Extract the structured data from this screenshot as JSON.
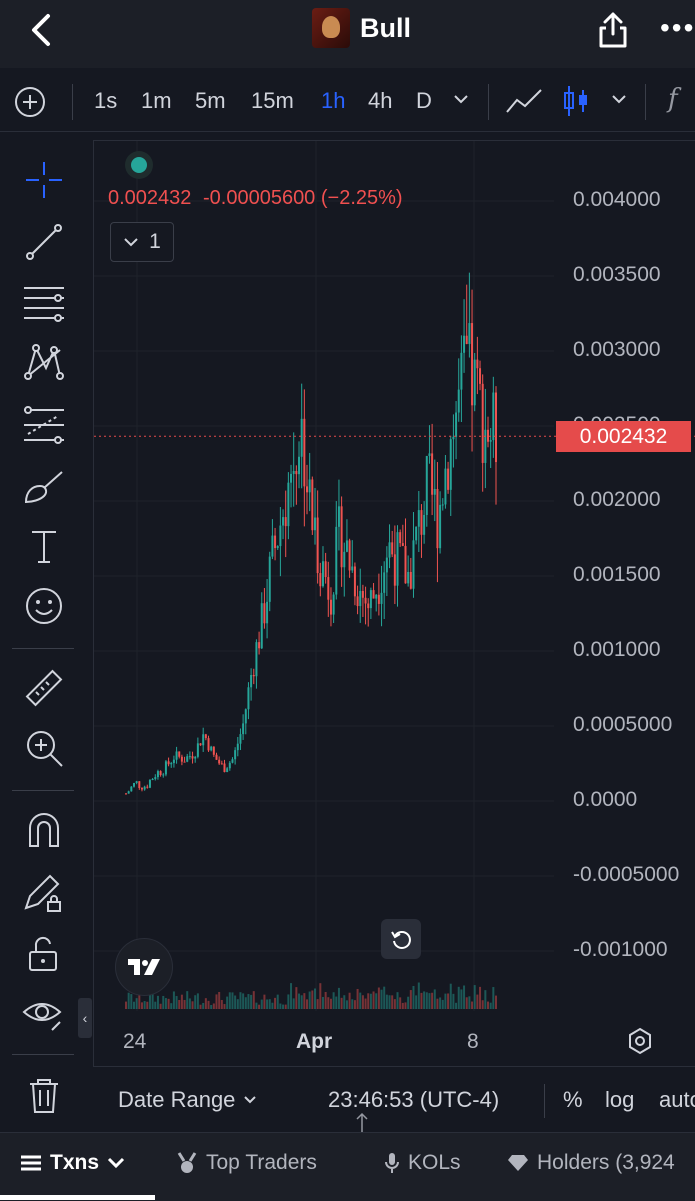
{
  "header": {
    "title": "Bull",
    "back_icon": "chevron-left-icon",
    "share_icon": "share-icon",
    "more_icon": "more-icon"
  },
  "toolbar": {
    "timeframes": [
      "1s",
      "1m",
      "5m",
      "15m",
      "1h",
      "4h",
      "D"
    ],
    "active_timeframe": "1h"
  },
  "chart": {
    "legend_price": "0.002432",
    "legend_change": "-0.00005600 (−2.25%)",
    "collapse_count": "1",
    "price_badge": "0.002432",
    "y_ticks": [
      "0.004000",
      "0.003500",
      "0.003000",
      "0.002500",
      "0.002000",
      "0.001500",
      "0.001000",
      "0.0005000",
      "0.0000",
      "-0.0005000",
      "-0.001000"
    ],
    "x_ticks": [
      "24",
      "Apr",
      "8"
    ],
    "colors": {
      "up": "#26a69a",
      "down": "#ef5350",
      "price_line": "#e54b4b"
    }
  },
  "chart_data": {
    "type": "candlestick",
    "x_labels": [
      "24",
      "Apr",
      "8"
    ],
    "ylim": [
      -0.0012,
      0.0042
    ],
    "last_price": 0.002432,
    "change": -5.6e-05,
    "change_pct": -2.25,
    "close_series": [
      5e-05,
      0.00012,
      0.0001,
      0.00018,
      0.00022,
      0.0003,
      0.00028,
      0.00032,
      0.00045,
      0.0003,
      0.00022,
      0.00028,
      0.0005,
      0.0009,
      0.0012,
      0.0016,
      0.0019,
      0.0022,
      0.0025,
      0.0019,
      0.0016,
      0.0014,
      0.0018,
      0.0016,
      0.0014,
      0.0013,
      0.0015,
      0.0017,
      0.0016,
      0.0015,
      0.0018,
      0.0021,
      0.0019,
      0.0023,
      0.0026,
      0.0029,
      0.0027,
      0.0025,
      0.002432
    ]
  },
  "bottom": {
    "date_range": "Date Range",
    "time": "23:46:53 (UTC-4)",
    "percent": "%",
    "log": "log",
    "auto": "auto"
  },
  "tabs": [
    {
      "label": "Txns",
      "icon": "list-icon"
    },
    {
      "label": "Top Traders",
      "icon": "medal-icon"
    },
    {
      "label": "KOLs",
      "icon": "microphone-icon"
    },
    {
      "label": "Holders (3,924",
      "icon": "diamond-icon"
    }
  ]
}
